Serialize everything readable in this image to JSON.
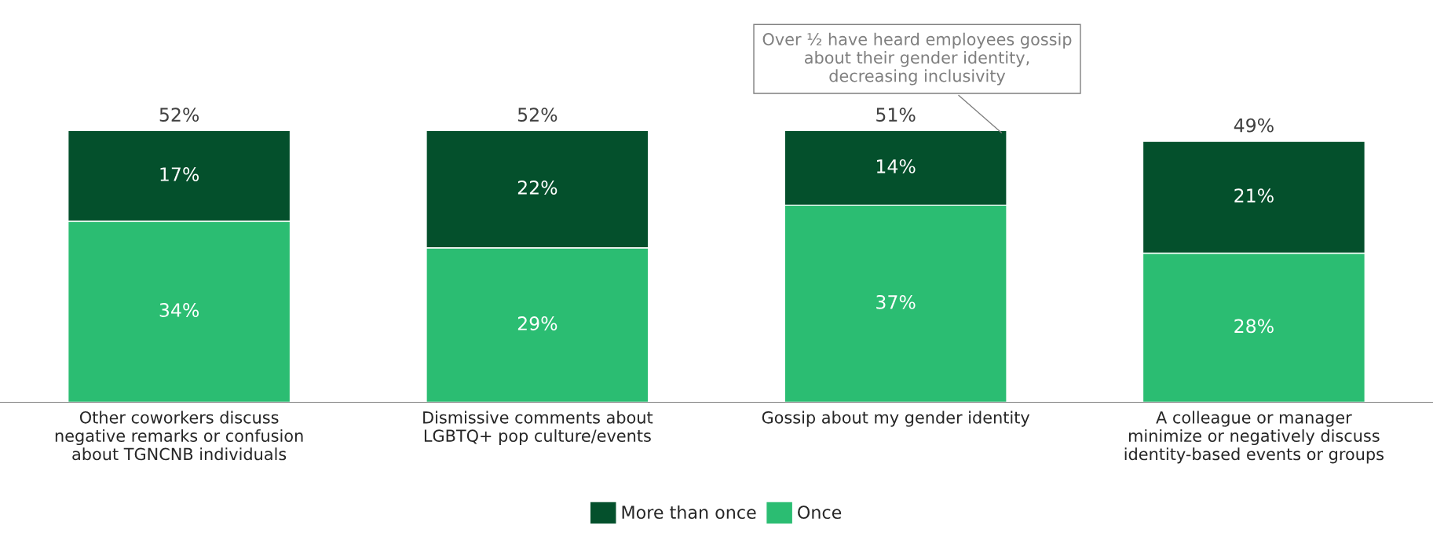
{
  "chart_data": {
    "type": "bar",
    "stacked": true,
    "categories": [
      "Other coworkers discuss\nnegative remarks or confusion\nabout TGNCNB individuals",
      "Dismissive comments about\nLGBTQ+ pop culture/events",
      "Gossip about my gender identity",
      "A colleague or manager\nminimize or negatively discuss\nidentity-based events or groups"
    ],
    "series": [
      {
        "name": "Once",
        "color": "#2bbd72",
        "values": [
          34,
          29,
          37,
          28
        ],
        "value_labels": [
          "34%",
          "29%",
          "37%",
          "28%"
        ]
      },
      {
        "name": "More than once",
        "color": "#04502c",
        "values": [
          17,
          22,
          14,
          21
        ],
        "value_labels": [
          "17%",
          "22%",
          "14%",
          "21%"
        ]
      }
    ],
    "totals": [
      "52%",
      "52%",
      "51%",
      "49%"
    ],
    "annotations": [
      "Over ½ have heard employees gossip\nabout their gender identity,\ndecreasing inclusivity"
    ],
    "legend": "bottom",
    "grid": false
  }
}
